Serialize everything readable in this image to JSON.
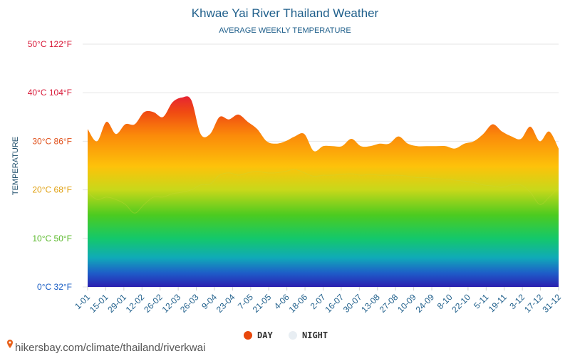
{
  "chart_data": {
    "type": "area",
    "title": "Khwae Yai River Thailand Weather",
    "subtitle": "AVERAGE WEEKLY TEMPERATURE",
    "ylabel": "TEMPERATURE",
    "ylim": [
      0,
      50
    ],
    "grid": true,
    "legend_position": "bottom",
    "y_ticks": [
      {
        "value": 0,
        "label": "0°C 32°F",
        "color": "#1a5ec4"
      },
      {
        "value": 10,
        "label": "10°C 50°F",
        "color": "#5ab92a"
      },
      {
        "value": 20,
        "label": "20°C 68°F",
        "color": "#e0a010"
      },
      {
        "value": 30,
        "label": "30°C 86°F",
        "color": "#e0501a"
      },
      {
        "value": 40,
        "label": "40°C 104°F",
        "color": "#d81b3a"
      },
      {
        "value": 50,
        "label": "50°C 122°F",
        "color": "#d81b3a"
      }
    ],
    "x_tick_labels": [
      "1-01",
      "15-01",
      "29-01",
      "12-02",
      "26-02",
      "12-03",
      "26-03",
      "9-04",
      "23-04",
      "7-05",
      "21-05",
      "4-06",
      "18-06",
      "2-07",
      "16-07",
      "30-07",
      "13-08",
      "27-08",
      "10-09",
      "24-09",
      "8-10",
      "22-10",
      "5-11",
      "19-11",
      "3-12",
      "17-12",
      "31-12"
    ],
    "series": [
      {
        "name": "DAY",
        "color": "#e8480c",
        "values": [
          32.5,
          30,
          34,
          31.5,
          33.5,
          33.5,
          36,
          36,
          35,
          38,
          39,
          38.5,
          31.5,
          31.5,
          35,
          34.5,
          35.5,
          34,
          32.5,
          30,
          29.5,
          30,
          31,
          31.5,
          28,
          29,
          29,
          29,
          30.5,
          29,
          29,
          29.5,
          29.5,
          31,
          29.5,
          29,
          29,
          29,
          29,
          28.5,
          29.5,
          30,
          31.5,
          33.5,
          32,
          31,
          30.5,
          33,
          30,
          32,
          28.5
        ]
      },
      {
        "name": "NIGHT",
        "color": "#e8eef3",
        "values": [
          19.5,
          18,
          18.5,
          18,
          17,
          15.2,
          17,
          18.5,
          18.5,
          19.2,
          19.5,
          20,
          21,
          21.2,
          23,
          23.5,
          23,
          23.5,
          23.8,
          23.5,
          23.5,
          23.8,
          24.2,
          23.5,
          22.8,
          23,
          23,
          23.2,
          23.3,
          23,
          23.2,
          23,
          23,
          23,
          22.8,
          22.5,
          22.5,
          22.3,
          22.2,
          22,
          21.8,
          21.5,
          21,
          20.8,
          20.5,
          21,
          21,
          19.5,
          17,
          18.5,
          20.5
        ]
      }
    ]
  },
  "source_text": "hikersbay.com/climate/thailand/riverkwai"
}
